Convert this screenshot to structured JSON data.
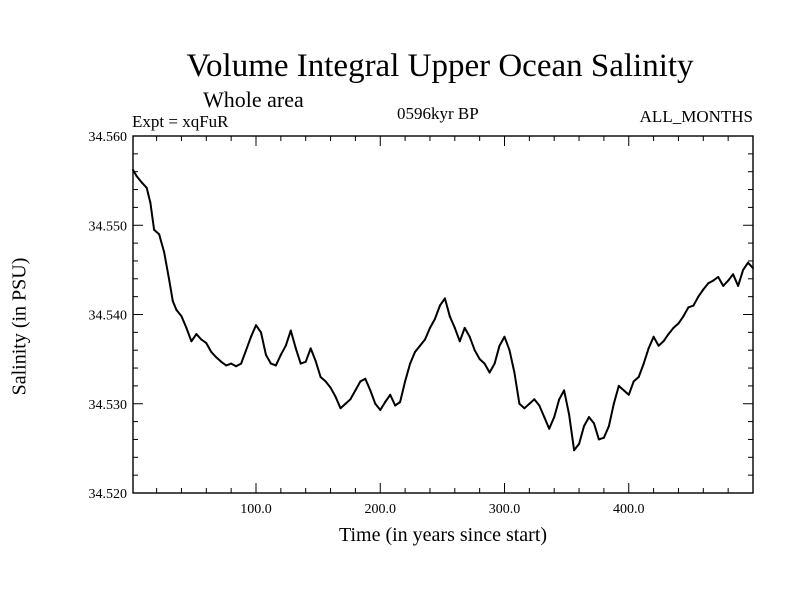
{
  "chart_data": {
    "type": "line",
    "title": "Volume Integral Upper Ocean Salinity",
    "subtitle": "Whole area",
    "expt_label": "Expt = xqFuR",
    "period_label": "0596kyr BP",
    "season_label": "ALL_MONTHS",
    "xlabel": "Time (in years since start)",
    "ylabel": "Salinity (in PSU)",
    "xlim": [
      1,
      500
    ],
    "ylim": [
      34.52,
      34.56
    ],
    "xticks": [
      {
        "value": 100,
        "label": "100.0"
      },
      {
        "value": 200,
        "label": "200.0"
      },
      {
        "value": 300,
        "label": "300.0"
      },
      {
        "value": 400,
        "label": "400.0"
      }
    ],
    "yticks": [
      {
        "value": 34.52,
        "label": "34.520"
      },
      {
        "value": 34.53,
        "label": "34.530"
      },
      {
        "value": 34.54,
        "label": "34.540"
      },
      {
        "value": 34.55,
        "label": "34.550"
      },
      {
        "value": 34.56,
        "label": "34.560"
      }
    ],
    "series": [
      {
        "name": "Volume integral upper ocean salinity",
        "x": [
          1,
          4,
          8,
          12,
          15,
          18,
          22,
          26,
          30,
          33,
          36,
          40,
          44,
          48,
          52,
          56,
          60,
          64,
          68,
          72,
          76,
          80,
          84,
          88,
          92,
          96,
          100,
          104,
          108,
          112,
          116,
          120,
          124,
          128,
          132,
          136,
          140,
          144,
          148,
          152,
          156,
          160,
          164,
          168,
          172,
          176,
          180,
          184,
          188,
          192,
          196,
          200,
          204,
          208,
          212,
          216,
          220,
          224,
          228,
          232,
          236,
          240,
          244,
          248,
          252,
          256,
          260,
          264,
          268,
          272,
          276,
          280,
          284,
          288,
          292,
          296,
          300,
          304,
          308,
          312,
          316,
          320,
          324,
          328,
          332,
          336,
          340,
          344,
          348,
          352,
          356,
          360,
          364,
          368,
          372,
          376,
          380,
          384,
          388,
          392,
          396,
          400,
          404,
          408,
          412,
          416,
          420,
          424,
          428,
          432,
          436,
          440,
          444,
          448,
          452,
          456,
          460,
          464,
          468,
          472,
          476,
          480,
          484,
          488,
          492,
          496,
          500
        ],
        "values": [
          34.5562,
          34.5555,
          34.5548,
          34.5542,
          34.5525,
          34.5495,
          34.549,
          34.547,
          34.544,
          34.5415,
          34.5405,
          34.5398,
          34.5385,
          34.537,
          34.5378,
          34.5372,
          34.5368,
          34.5358,
          34.5352,
          34.5347,
          34.5343,
          34.5345,
          34.5342,
          34.5345,
          34.536,
          34.5375,
          34.5388,
          34.538,
          34.5355,
          34.5345,
          34.5343,
          34.5355,
          34.5365,
          34.5382,
          34.5362,
          34.5345,
          34.5347,
          34.5362,
          34.5348,
          34.533,
          34.5325,
          34.5318,
          34.5308,
          34.5295,
          34.53,
          34.5305,
          34.5315,
          34.5325,
          34.5328,
          34.5315,
          34.53,
          34.5293,
          34.5302,
          34.531,
          34.5298,
          34.5302,
          34.5325,
          34.5345,
          34.5358,
          34.5365,
          34.5372,
          34.5385,
          34.5395,
          34.541,
          34.5418,
          34.5398,
          34.5385,
          34.537,
          34.5385,
          34.5375,
          34.536,
          34.535,
          34.5345,
          34.5335,
          34.5345,
          34.5365,
          34.5375,
          34.536,
          34.5335,
          34.53,
          34.5295,
          34.53,
          34.5305,
          34.5298,
          34.5285,
          34.5272,
          34.5285,
          34.5305,
          34.5315,
          34.5288,
          34.5248,
          34.5255,
          34.5275,
          34.5285,
          34.5278,
          34.526,
          34.5262,
          34.5275,
          34.53,
          34.532,
          34.5315,
          34.531,
          34.5325,
          34.533,
          34.5345,
          34.5362,
          34.5375,
          34.5365,
          34.537,
          34.5378,
          34.5385,
          34.539,
          34.5398,
          34.5408,
          34.541,
          34.542,
          34.5428,
          34.5435,
          34.5438,
          34.5442,
          34.5432,
          34.5438,
          34.5445,
          34.5432,
          34.545,
          34.5458,
          34.5452
        ]
      }
    ]
  }
}
